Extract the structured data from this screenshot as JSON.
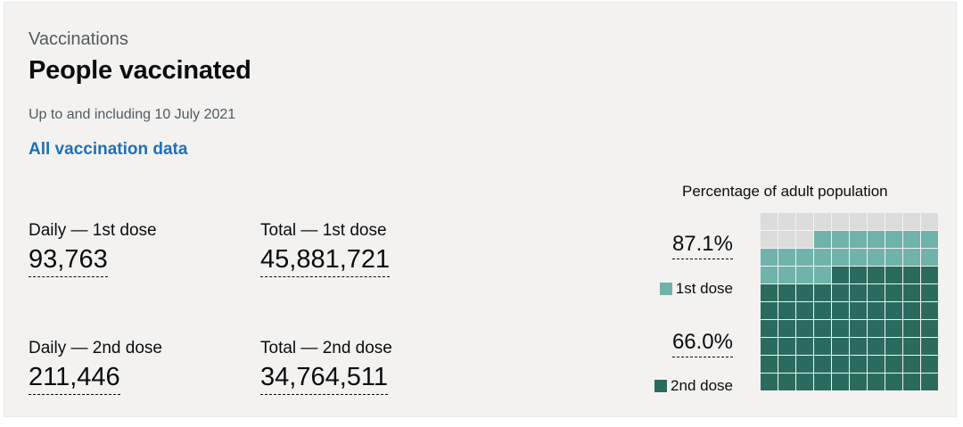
{
  "card": {
    "caption": "Vaccinations",
    "title": "People vaccinated",
    "updated": "Up to and including 10 July 2021",
    "link_label": "All vaccination data"
  },
  "metrics": {
    "daily_first": {
      "label": "Daily — 1st dose",
      "value": "93,763"
    },
    "total_first": {
      "label": "Total — 1st dose",
      "value": "45,881,721"
    },
    "daily_second": {
      "label": "Daily — 2nd dose",
      "value": "211,446"
    },
    "total_second": {
      "label": "Total — 2nd dose",
      "value": "34,764,511"
    }
  },
  "chart": {
    "title": "Percentage of adult population",
    "first_dose_percent": "87.1%",
    "second_dose_percent": "66.0%",
    "legend_first": "1st dose",
    "legend_second": "2nd dose"
  },
  "chart_data": {
    "type": "waffle",
    "title": "Percentage of adult population",
    "total_cells": 100,
    "series": [
      {
        "name": "1st dose",
        "percent": 87.1,
        "color": "#6fb3ab"
      },
      {
        "name": "2nd dose",
        "percent": 66.0,
        "color": "#2b6b5e"
      }
    ],
    "empty_color": "#dcdcdc"
  },
  "colors": {
    "link": "#1d70b8",
    "first_dose": "#6fb3ab",
    "second_dose": "#2b6b5e",
    "empty": "#dcdcdc",
    "card_bg": "#f3f2f1"
  }
}
